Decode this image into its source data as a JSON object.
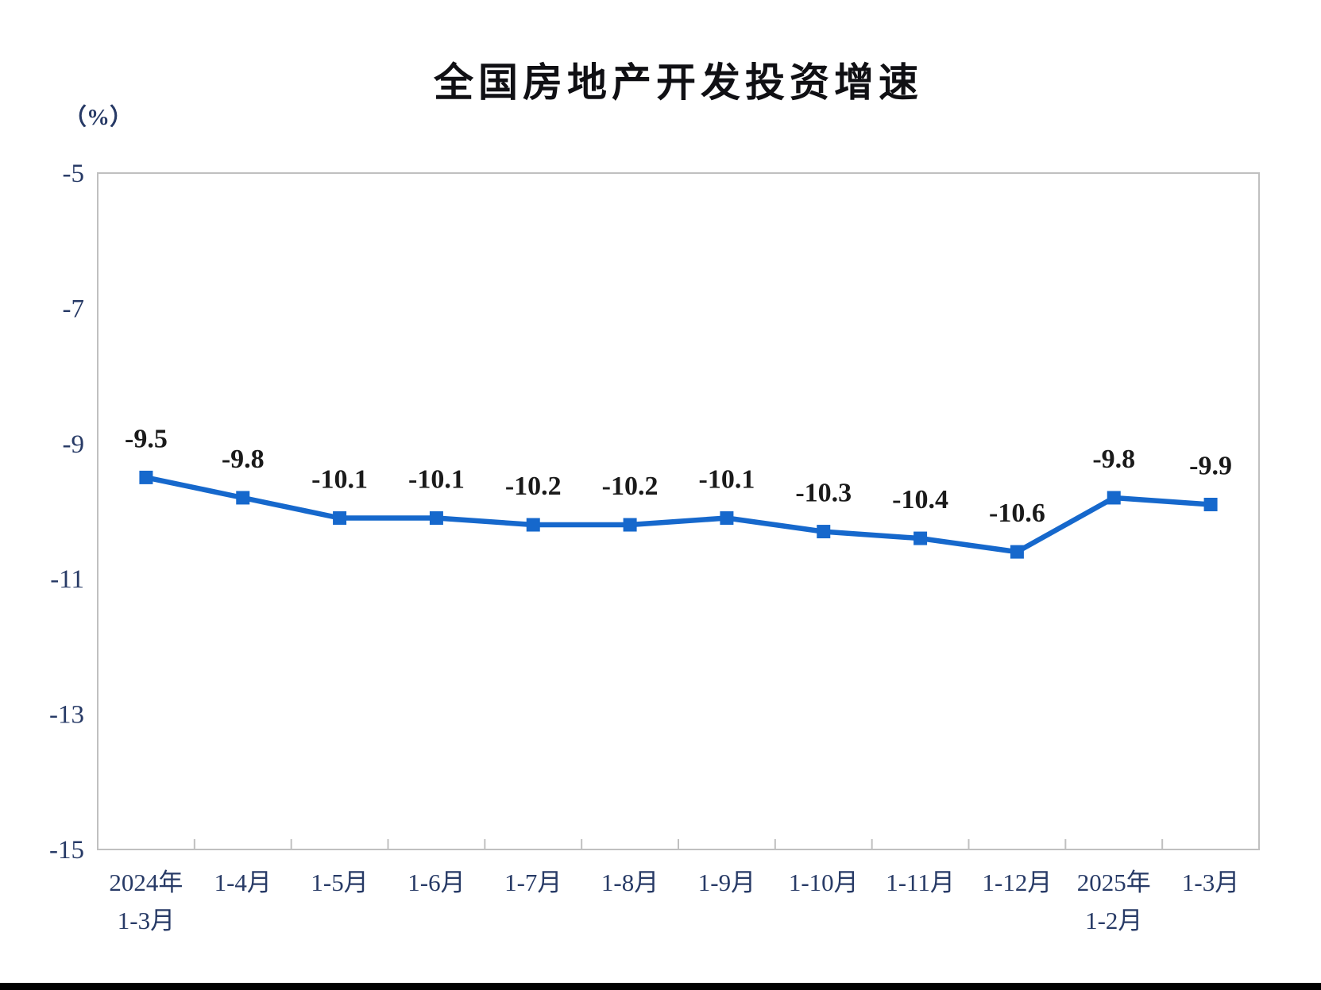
{
  "page": {
    "background_color": "#ffffff",
    "bottom_bar_color": "#000000"
  },
  "chart_data": {
    "type": "line",
    "title": "全国房地产开发投资增速",
    "unit_label": "（%）",
    "categories": [
      [
        "2024年",
        "1-3月"
      ],
      [
        "1-4月"
      ],
      [
        "1-5月"
      ],
      [
        "1-6月"
      ],
      [
        "1-7月"
      ],
      [
        "1-8月"
      ],
      [
        "1-9月"
      ],
      [
        "1-10月"
      ],
      [
        "1-11月"
      ],
      [
        "1-12月"
      ],
      [
        "2025年",
        "1-2月"
      ],
      [
        "1-3月"
      ]
    ],
    "series": [
      {
        "name": "全国房地产开发投资增速",
        "values": [
          -9.5,
          -9.8,
          -10.1,
          -10.1,
          -10.2,
          -10.2,
          -10.1,
          -10.3,
          -10.4,
          -10.6,
          -9.8,
          -9.9
        ]
      }
    ],
    "data_labels": [
      "-9.5",
      "-9.8",
      "-10.1",
      "-10.1",
      "-10.2",
      "-10.2",
      "-10.1",
      "-10.3",
      "-10.4",
      "-10.6",
      "-9.8",
      "-9.9"
    ],
    "xlabel": "",
    "ylabel": "（%）",
    "ylim": [
      -15,
      -5
    ],
    "y_ticks": [
      "-5",
      "-7",
      "-9",
      "-11",
      "-13",
      "-15"
    ],
    "y_tick_values": [
      -5,
      -7,
      -9,
      -11,
      -13,
      -15
    ],
    "grid": false,
    "legend_position": "none",
    "line_color": "#1668cc",
    "marker_shape": "square",
    "plot_border_color": "#c0c0c0",
    "axis_text_color": "#273a66",
    "data_label_color": "#1a1a1a",
    "title_color": "#101014"
  }
}
